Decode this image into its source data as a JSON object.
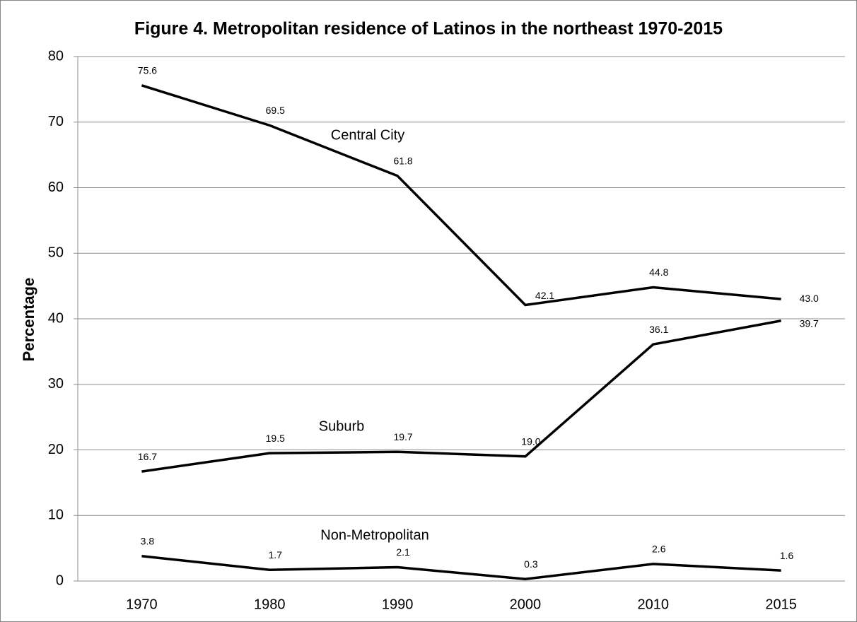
{
  "chart_data": {
    "type": "line",
    "title": "Figure 4. Metropolitan residence of Latinos in the northeast 1970-2015",
    "y_label": "Percentage",
    "categories": [
      "1970",
      "1980",
      "1990",
      "2000",
      "2010",
      "2015"
    ],
    "series": [
      {
        "name": "Central City",
        "color": "#000000",
        "values": [
          75.6,
          69.5,
          61.8,
          42.1,
          44.8,
          43.0
        ],
        "value_labels": [
          "75.6",
          "69.5",
          "61.8",
          "42.1",
          "44.8",
          "43.0"
        ]
      },
      {
        "name": "Suburb",
        "color": "#000000",
        "values": [
          16.7,
          19.5,
          19.7,
          19.0,
          36.1,
          39.7
        ],
        "value_labels": [
          "16.7",
          "19.5",
          "19.7",
          "19.0",
          "36.1",
          "39.7"
        ]
      },
      {
        "name": "Non-Metropolitan",
        "color": "#000000",
        "values": [
          3.8,
          1.7,
          2.1,
          0.3,
          2.6,
          1.6
        ],
        "value_labels": [
          "3.8",
          "1.7",
          "2.1",
          "0.3",
          "2.6",
          "1.6"
        ]
      }
    ],
    "ylim": [
      0,
      80
    ],
    "yticks": [
      0,
      10,
      20,
      30,
      40,
      50,
      60,
      70,
      80
    ],
    "grid": true
  }
}
